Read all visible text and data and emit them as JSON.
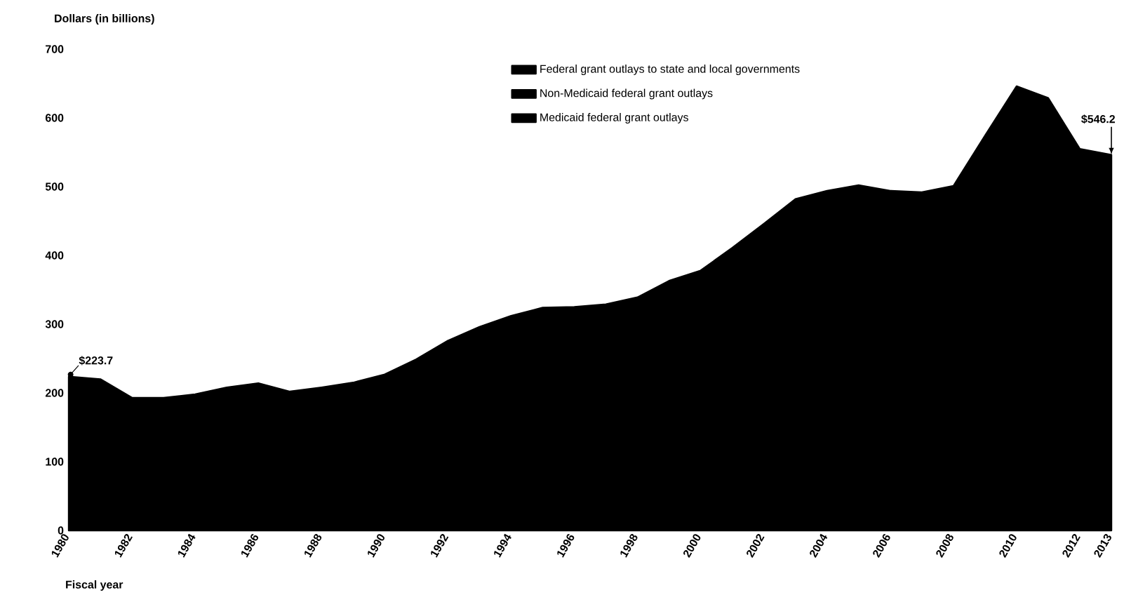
{
  "chart_data": {
    "type": "area",
    "ylabel": "Dollars (in billions)",
    "xlabel": "Fiscal year",
    "x": [
      1980,
      1981,
      1982,
      1983,
      1984,
      1985,
      1986,
      1987,
      1988,
      1989,
      1990,
      1991,
      1992,
      1993,
      1994,
      1995,
      1996,
      1997,
      1998,
      1999,
      2000,
      2001,
      2002,
      2003,
      2004,
      2005,
      2006,
      2007,
      2008,
      2009,
      2010,
      2011,
      2012,
      2013
    ],
    "series": [
      {
        "name": "Federal grant outlays to state and local governments",
        "color": "#000000",
        "values": [
          223.7,
          220,
          193,
          193,
          198,
          208,
          214,
          202,
          208,
          215,
          227,
          249,
          276,
          296,
          312,
          324,
          325,
          329,
          339,
          363,
          378,
          411,
          446,
          482,
          494,
          502,
          494,
          492,
          501,
          574,
          646,
          629,
          555,
          546.2
        ]
      },
      {
        "name": "Non-Medicaid federal grant outlays",
        "color": "#000000",
        "values": [
          null,
          null,
          null,
          null,
          null,
          null,
          null,
          null,
          null,
          null,
          null,
          null,
          null,
          null,
          null,
          null,
          null,
          null,
          null,
          null,
          null,
          null,
          null,
          null,
          null,
          null,
          null,
          null,
          null,
          null,
          null,
          null,
          null,
          null
        ]
      },
      {
        "name": "Medicaid federal grant outlays",
        "color": "#000000",
        "values": [
          null,
          null,
          null,
          null,
          null,
          null,
          null,
          null,
          null,
          null,
          null,
          null,
          null,
          null,
          null,
          null,
          null,
          null,
          null,
          null,
          null,
          null,
          null,
          null,
          null,
          null,
          null,
          null,
          null,
          null,
          null,
          null,
          null,
          null
        ]
      }
    ],
    "xlim": [
      1980,
      2013
    ],
    "ylim": [
      0,
      700
    ],
    "xticks": [
      1980,
      1982,
      1984,
      1986,
      1988,
      1990,
      1992,
      1994,
      1996,
      1998,
      2000,
      2002,
      2004,
      2006,
      2008,
      2010,
      2012,
      2013
    ],
    "yticks": [
      0,
      100,
      200,
      300,
      400,
      500,
      600,
      700
    ],
    "legend": "top",
    "annotations": [
      {
        "text": "$223.7",
        "x": 1980,
        "y": 223.7
      },
      {
        "text": "$546.2",
        "x": 2013,
        "y": 546.2
      }
    ]
  }
}
